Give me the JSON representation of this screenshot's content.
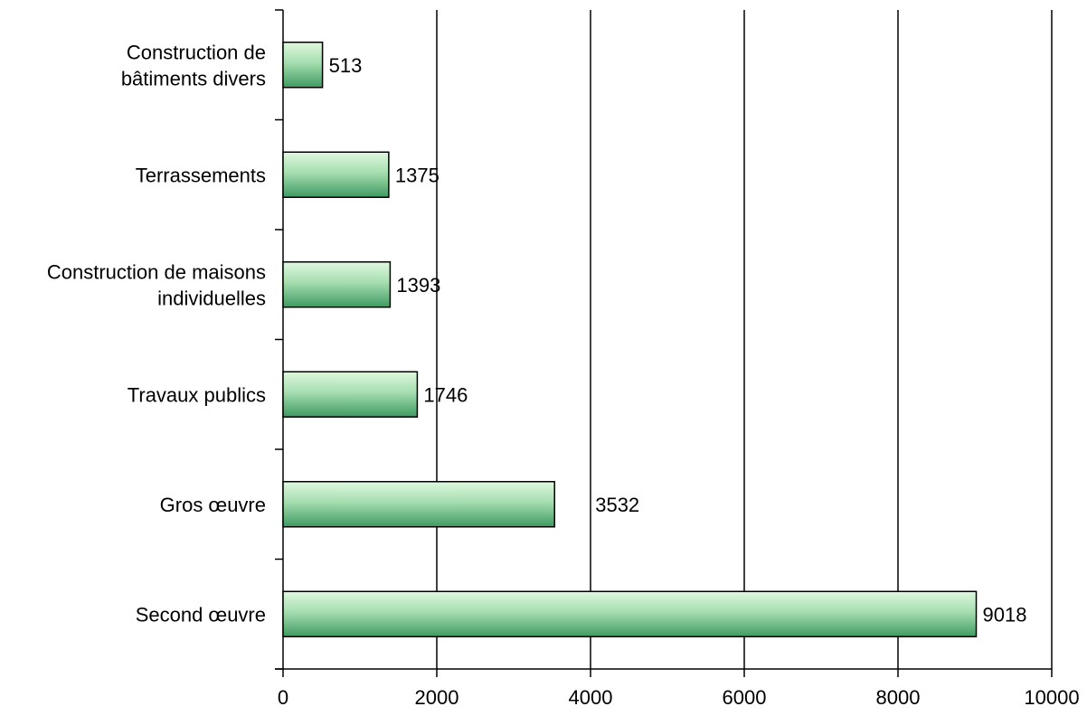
{
  "chart_data": {
    "type": "bar",
    "orientation": "horizontal",
    "categories": [
      [
        "Construction de",
        "bâtiments divers"
      ],
      [
        "Terrassements"
      ],
      [
        "Construction de maisons",
        "individuelles"
      ],
      [
        "Travaux publics"
      ],
      [
        "Gros œuvre"
      ],
      [
        "Second œuvre"
      ]
    ],
    "values": [
      513,
      1375,
      1393,
      1746,
      3532,
      9018
    ],
    "data_labels": [
      "513",
      "1375",
      "1393",
      "1746",
      "3532",
      "9018"
    ],
    "xlim": [
      0,
      10000
    ],
    "xticks": [
      0,
      2000,
      4000,
      6000,
      8000,
      10000
    ],
    "xtick_labels": [
      "0",
      "2000",
      "4000",
      "6000",
      "8000",
      "10000"
    ],
    "grid": "vertical",
    "legend": "none",
    "title": "",
    "xlabel": "",
    "ylabel": "",
    "colors": {
      "bar_light": "#dff8df",
      "bar_mid": "#a6deb0",
      "bar_dark": "#3f9a61",
      "bar_stroke": "#000000",
      "grid": "#000000"
    }
  }
}
